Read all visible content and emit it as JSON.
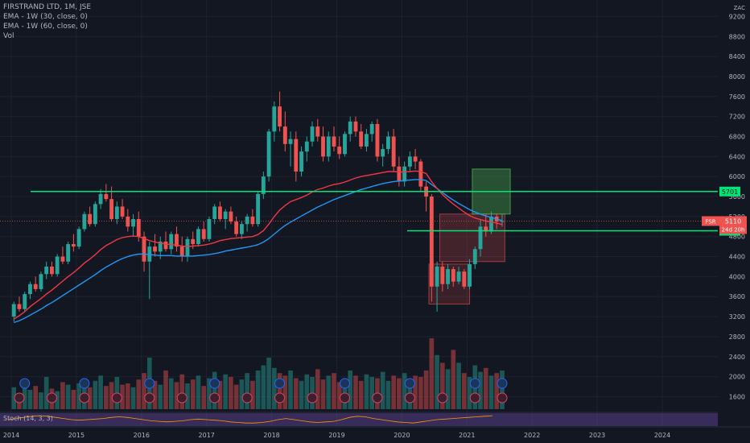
{
  "legend": {
    "symbol": "FIRSTRAND LTD, 1M, JSE",
    "ema1": "EMA - 1W (30, close, 0)",
    "ema2": "EMA - 1W (60, close, 0)",
    "vol": "Vol"
  },
  "stoch_label": "Stoch (14, 3, 3)",
  "currency": "ZAC",
  "price_tag": {
    "ticker": "FSR",
    "price": "5110",
    "countdown": "24d 20h"
  },
  "level_labels": {
    "upper": "5701",
    "lower": "4916"
  },
  "colors": {
    "background": "#131722",
    "up": "#26a69a",
    "down": "#ef5350",
    "ema_fast": "#f23645",
    "ema_slow": "#2196f3",
    "level_line": "#00e676",
    "stoch_band": "#7e57c2"
  },
  "chart_data": {
    "type": "candlestick",
    "title": "FIRSTRAND LTD, 1M, JSE",
    "x_ticks": [
      "2014",
      "2015",
      "2016",
      "2017",
      "2018",
      "2019",
      "2020",
      "2021",
      "2022",
      "2023",
      "2024"
    ],
    "y_ticks": [
      1600,
      2000,
      2400,
      2800,
      3200,
      3600,
      4000,
      4400,
      4800,
      5200,
      5600,
      6000,
      6400,
      6800,
      7200,
      7600,
      8000,
      8400,
      8800,
      9200
    ],
    "ylim": [
      1350,
      9400
    ],
    "xlim": [
      2014.0,
      2025.0
    ],
    "horizontal_levels": [
      5701,
      4916
    ],
    "ohlc": [
      [
        3200,
        3500,
        3100,
        3450
      ],
      [
        3450,
        3600,
        3300,
        3350
      ],
      [
        3350,
        3700,
        3300,
        3650
      ],
      [
        3650,
        3900,
        3550,
        3850
      ],
      [
        3850,
        4000,
        3700,
        3750
      ],
      [
        3750,
        4100,
        3700,
        4050
      ],
      [
        4050,
        4300,
        3950,
        4200
      ],
      [
        4200,
        4300,
        4000,
        4050
      ],
      [
        4050,
        4450,
        4000,
        4400
      ],
      [
        4400,
        4600,
        4250,
        4300
      ],
      [
        4300,
        4700,
        4250,
        4650
      ],
      [
        4650,
        4850,
        4500,
        4600
      ],
      [
        4600,
        5000,
        4550,
        4950
      ],
      [
        4950,
        5300,
        4900,
        5250
      ],
      [
        5250,
        5400,
        5000,
        5050
      ],
      [
        5050,
        5500,
        5000,
        5450
      ],
      [
        5450,
        5750,
        5350,
        5650
      ],
      [
        5650,
        5850,
        5500,
        5550
      ],
      [
        5550,
        5800,
        5100,
        5150
      ],
      [
        5150,
        5500,
        5050,
        5400
      ],
      [
        5400,
        5550,
        5150,
        5200
      ],
      [
        5200,
        5350,
        4900,
        5000
      ],
      [
        5000,
        5250,
        4800,
        5150
      ],
      [
        5150,
        5300,
        4700,
        4800
      ],
      [
        4800,
        4900,
        4100,
        4300
      ],
      [
        4300,
        4700,
        3550,
        4600
      ],
      [
        4600,
        4850,
        4400,
        4500
      ],
      [
        4500,
        4800,
        4350,
        4700
      ],
      [
        4700,
        4900,
        4500,
        4550
      ],
      [
        4550,
        4900,
        4450,
        4850
      ],
      [
        4850,
        5000,
        4500,
        4600
      ],
      [
        4600,
        4800,
        4300,
        4400
      ],
      [
        4400,
        4800,
        4300,
        4750
      ],
      [
        4750,
        4900,
        4550,
        4650
      ],
      [
        4650,
        5000,
        4600,
        4950
      ],
      [
        4950,
        5100,
        4700,
        4750
      ],
      [
        4750,
        5200,
        4700,
        5150
      ],
      [
        5150,
        5450,
        5050,
        5400
      ],
      [
        5400,
        5500,
        5100,
        5150
      ],
      [
        5150,
        5350,
        4950,
        5300
      ],
      [
        5300,
        5400,
        5050,
        5100
      ],
      [
        5100,
        5200,
        4800,
        4850
      ],
      [
        4850,
        5100,
        4750,
        5050
      ],
      [
        5050,
        5250,
        4900,
        5200
      ],
      [
        5200,
        5350,
        5000,
        5050
      ],
      [
        5050,
        5700,
        5000,
        5650
      ],
      [
        5650,
        6100,
        5550,
        6000
      ],
      [
        6000,
        6950,
        5900,
        6900
      ],
      [
        6900,
        7500,
        6700,
        7400
      ],
      [
        7400,
        7700,
        6900,
        7000
      ],
      [
        7000,
        7300,
        6500,
        6650
      ],
      [
        6650,
        6900,
        6200,
        6750
      ],
      [
        6750,
        6900,
        5900,
        6100
      ],
      [
        6100,
        6600,
        6000,
        6500
      ],
      [
        6500,
        6800,
        6300,
        6700
      ],
      [
        6700,
        7100,
        6600,
        7000
      ],
      [
        7000,
        7150,
        6700,
        6800
      ],
      [
        6800,
        7000,
        6300,
        6400
      ],
      [
        6400,
        6900,
        6300,
        6800
      ],
      [
        6800,
        7000,
        6500,
        6600
      ],
      [
        6600,
        6800,
        6350,
        6450
      ],
      [
        6450,
        6900,
        6400,
        6850
      ],
      [
        6850,
        7200,
        6700,
        7100
      ],
      [
        7100,
        7200,
        6800,
        6900
      ],
      [
        6900,
        7050,
        6550,
        6600
      ],
      [
        6600,
        6950,
        6500,
        6850
      ],
      [
        6850,
        7100,
        6700,
        7050
      ],
      [
        7050,
        7150,
        6300,
        6400
      ],
      [
        6400,
        6650,
        6200,
        6550
      ],
      [
        6550,
        6900,
        6450,
        6800
      ],
      [
        6800,
        6950,
        6100,
        6200
      ],
      [
        6200,
        6400,
        5800,
        5900
      ],
      [
        5900,
        6300,
        5800,
        6200
      ],
      [
        6200,
        6500,
        6100,
        6400
      ],
      [
        6400,
        6550,
        6150,
        6300
      ],
      [
        6300,
        6350,
        5700,
        5800
      ],
      [
        5800,
        5900,
        5300,
        5600
      ],
      [
        5600,
        5650,
        3500,
        3800
      ],
      [
        3800,
        4300,
        3300,
        4200
      ],
      [
        4200,
        4300,
        3700,
        3850
      ],
      [
        3850,
        4250,
        3750,
        4150
      ],
      [
        4150,
        4200,
        3800,
        3900
      ],
      [
        3900,
        4200,
        3850,
        4100
      ],
      [
        4100,
        4150,
        3750,
        3800
      ],
      [
        3800,
        4350,
        3750,
        4250
      ],
      [
        4250,
        4600,
        4150,
        4550
      ],
      [
        4550,
        5150,
        4400,
        5000
      ],
      [
        5000,
        5250,
        4800,
        4900
      ],
      [
        4900,
        5300,
        4850,
        5200
      ],
      [
        5200,
        5250,
        4950,
        5100
      ],
      [
        5100,
        5250,
        5000,
        5110
      ]
    ],
    "ema_fast": [
      3150,
      3220,
      3300,
      3400,
      3480,
      3560,
      3650,
      3730,
      3820,
      3910,
      4000,
      4080,
      4170,
      4270,
      4350,
      4440,
      4540,
      4620,
      4680,
      4740,
      4780,
      4800,
      4810,
      4800,
      4760,
      4720,
      4690,
      4670,
      4650,
      4640,
      4630,
      4610,
      4600,
      4610,
      4620,
      4630,
      4650,
      4680,
      4720,
      4740,
      4760,
      4770,
      4780,
      4790,
      4800,
      4840,
      4920,
      5050,
      5200,
      5330,
      5420,
      5500,
      5540,
      5580,
      5630,
      5690,
      5740,
      5770,
      5810,
      5840,
      5860,
      5890,
      5930,
      5970,
      6000,
      6020,
      6040,
      6060,
      6080,
      6100,
      6100,
      6090,
      6090,
      6100,
      6110,
      6100,
      6060,
      5900,
      5760,
      5640,
      5540,
      5450,
      5370,
      5290,
      5220,
      5170,
      5140,
      5110,
      5090,
      5070,
      5040
    ],
    "ema_slow": [
      3080,
      3120,
      3170,
      3230,
      3290,
      3350,
      3420,
      3480,
      3550,
      3620,
      3690,
      3760,
      3830,
      3900,
      3970,
      4040,
      4120,
      4190,
      4250,
      4310,
      4360,
      4400,
      4430,
      4450,
      4450,
      4440,
      4430,
      4420,
      4420,
      4420,
      4410,
      4410,
      4410,
      4410,
      4420,
      4430,
      4440,
      4460,
      4480,
      4510,
      4530,
      4550,
      4570,
      4590,
      4610,
      4640,
      4690,
      4760,
      4850,
      4940,
      5020,
      5090,
      5150,
      5210,
      5270,
      5330,
      5390,
      5440,
      5490,
      5540,
      5580,
      5620,
      5660,
      5700,
      5740,
      5770,
      5800,
      5830,
      5860,
      5880,
      5900,
      5910,
      5920,
      5930,
      5940,
      5940,
      5920,
      5840,
      5760,
      5680,
      5600,
      5530,
      5460,
      5400,
      5340,
      5290,
      5250,
      5210,
      5180,
      5150,
      5120
    ],
    "volume": [
      0.17,
      0.12,
      0.22,
      0.15,
      0.18,
      0.13,
      0.25,
      0.16,
      0.14,
      0.21,
      0.19,
      0.15,
      0.2,
      0.24,
      0.17,
      0.22,
      0.26,
      0.18,
      0.21,
      0.25,
      0.19,
      0.2,
      0.17,
      0.23,
      0.28,
      0.4,
      0.22,
      0.19,
      0.3,
      0.24,
      0.21,
      0.27,
      0.2,
      0.23,
      0.26,
      0.18,
      0.24,
      0.29,
      0.22,
      0.27,
      0.25,
      0.19,
      0.23,
      0.28,
      0.22,
      0.3,
      0.34,
      0.4,
      0.32,
      0.28,
      0.26,
      0.3,
      0.24,
      0.22,
      0.27,
      0.25,
      0.31,
      0.23,
      0.26,
      0.28,
      0.21,
      0.24,
      0.3,
      0.26,
      0.22,
      0.27,
      0.25,
      0.24,
      0.29,
      0.22,
      0.26,
      0.24,
      0.28,
      0.23,
      0.26,
      0.25,
      0.3,
      0.55,
      0.42,
      0.36,
      0.31,
      0.46,
      0.36,
      0.28,
      0.25,
      0.34,
      0.29,
      0.32,
      0.26,
      0.28,
      0.3
    ],
    "stoch_k": [
      0.5,
      0.6,
      0.7,
      0.8,
      0.85,
      0.8,
      0.7,
      0.6,
      0.5,
      0.45,
      0.5,
      0.55,
      0.6,
      0.7,
      0.75,
      0.7,
      0.6,
      0.5,
      0.4,
      0.35,
      0.3,
      0.35,
      0.4,
      0.5,
      0.55,
      0.5,
      0.45,
      0.4,
      0.3,
      0.25,
      0.2,
      0.2,
      0.25,
      0.35,
      0.5,
      0.6,
      0.5,
      0.4,
      0.3,
      0.25,
      0.3,
      0.35,
      0.5,
      0.7,
      0.8,
      0.75,
      0.6,
      0.5,
      0.4,
      0.3,
      0.25,
      0.2,
      0.3,
      0.4,
      0.5,
      0.55,
      0.6,
      0.65,
      0.7,
      0.75,
      0.8,
      0.85
    ]
  }
}
